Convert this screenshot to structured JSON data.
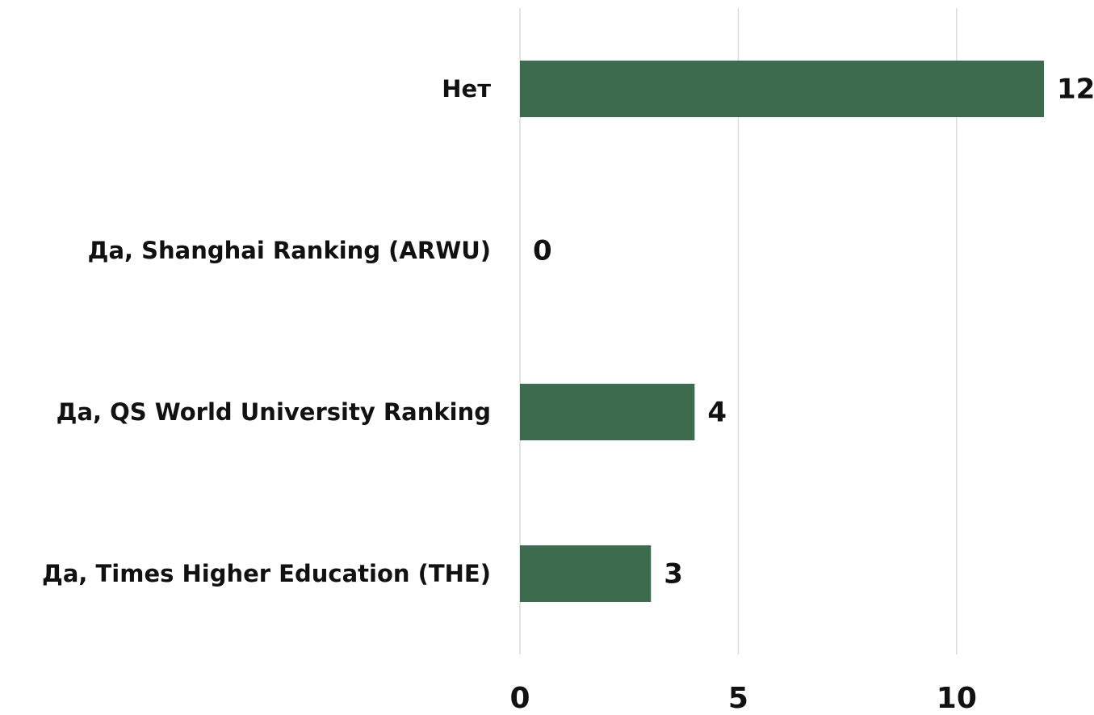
{
  "chart_data": {
    "type": "hbar",
    "categories": [
      "Нет",
      "Да, Shanghai Ranking (ARWU)",
      "Да, QS World University Ranking",
      "Да, Times Higher Education (THE)"
    ],
    "values": [
      12,
      0,
      4,
      3
    ],
    "color": "#3d6b4d",
    "xlim": [
      0,
      12
    ],
    "xticks": [
      0,
      5,
      10
    ],
    "grid": true
  }
}
